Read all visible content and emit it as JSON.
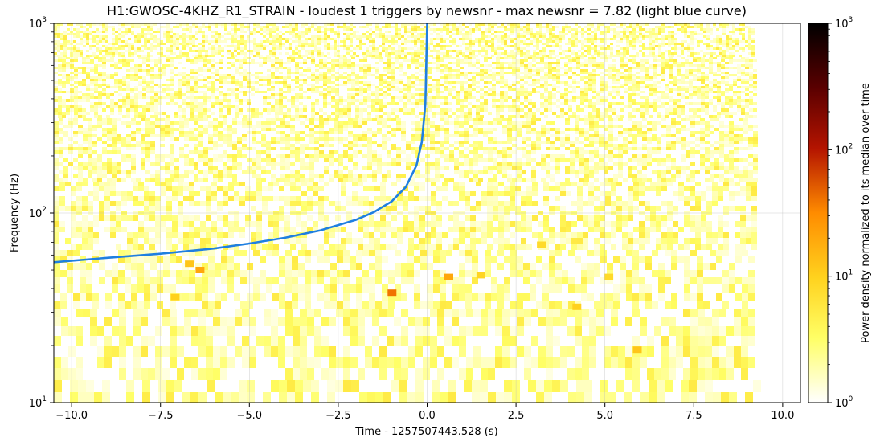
{
  "chart_data": {
    "type": "heatmap",
    "title": "H1:GWOSC-4KHZ_R1_STRAIN - loudest 1 triggers by newsnr - max newsnr = 7.82 (light blue curve)",
    "xlabel": "Time - 1257507443.528 (s)",
    "ylabel": "Frequency (Hz)",
    "xlim": [
      -10.5,
      10.5
    ],
    "ylim": [
      10,
      1000
    ],
    "yscale": "log",
    "grid": true,
    "x_ticks": [
      -10.0,
      -7.5,
      -5.0,
      -2.5,
      0.0,
      2.5,
      5.0,
      7.5,
      10.0
    ],
    "x_tick_labels": [
      "−10.0",
      "−7.5",
      "−5.0",
      "−2.5",
      "0.0",
      "2.5",
      "5.0",
      "7.5",
      "10.0"
    ],
    "y_tick_labels": [
      {
        "value": 10,
        "base": "10",
        "exp": "1"
      },
      {
        "value": 100,
        "base": "10",
        "exp": "2"
      },
      {
        "value": 1000,
        "base": "10",
        "exp": "3"
      }
    ],
    "data_extent_x": [
      -10.5,
      9.2
    ],
    "colorbar": {
      "label": "Power density normalized to its median over time",
      "scale": "log",
      "range": [
        1,
        1000
      ],
      "colormap": "afmhot_r",
      "tick_labels": [
        {
          "value": 1,
          "base": "10",
          "exp": "0"
        },
        {
          "value": 10,
          "base": "10",
          "exp": "1"
        },
        {
          "value": 100,
          "base": "10",
          "exp": "2"
        },
        {
          "value": 1000,
          "base": "10",
          "exp": "3"
        }
      ]
    },
    "trigger_curve": {
      "color": "#1f7fe0",
      "x": [
        -10.5,
        -9.0,
        -7.5,
        -6.0,
        -5.0,
        -4.0,
        -3.0,
        -2.0,
        -1.5,
        -1.0,
        -0.6,
        -0.3,
        -0.15,
        -0.05,
        0.0
      ],
      "y": [
        55,
        58,
        61,
        65,
        69,
        74,
        81,
        92,
        101,
        115,
        137,
        178,
        237,
        375,
        1000
      ]
    },
    "hotspots": [
      {
        "x": -6.4,
        "y": 50,
        "v": 20
      },
      {
        "x": -1.0,
        "y": 38,
        "v": 40
      },
      {
        "x": 0.6,
        "y": 46,
        "v": 20
      },
      {
        "x": -6.7,
        "y": 54,
        "v": 12
      },
      {
        "x": 5.9,
        "y": 19,
        "v": 12
      },
      {
        "x": 4.2,
        "y": 32,
        "v": 10
      },
      {
        "x": -7.1,
        "y": 36,
        "v": 10
      },
      {
        "x": 1.5,
        "y": 47,
        "v": 9
      },
      {
        "x": 5.1,
        "y": 46,
        "v": 8
      },
      {
        "x": 3.2,
        "y": 68,
        "v": 8
      }
    ]
  }
}
